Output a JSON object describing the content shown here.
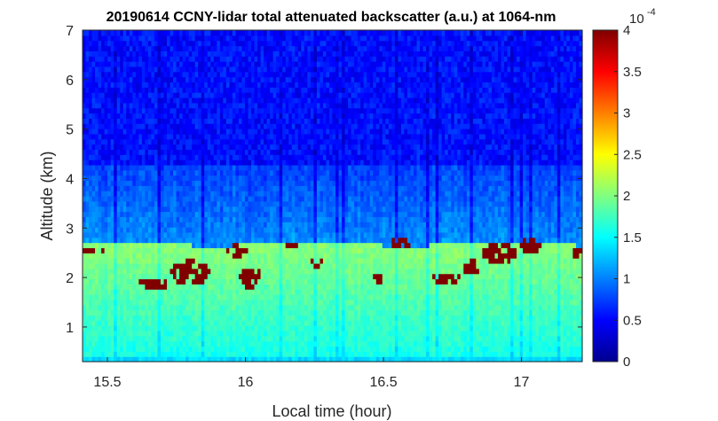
{
  "chart_data": {
    "type": "heatmap",
    "title": "20190614 CCNY-lidar total attenuated backscatter (a.u.) at 1064-nm",
    "xlabel": "Local time (hour)",
    "ylabel": "Altitude (km)",
    "xlim": [
      15.41,
      17.22
    ],
    "ylim": [
      0.3,
      7
    ],
    "xticks": [
      "15.5",
      "16",
      "16.5",
      "17"
    ],
    "xtick_values": [
      15.5,
      16,
      16.5,
      17
    ],
    "yticks": [
      "1",
      "2",
      "3",
      "4",
      "5",
      "6",
      "7"
    ],
    "ytick_values": [
      1,
      2,
      3,
      4,
      5,
      6,
      7
    ],
    "colorbar": {
      "colormap": "jet",
      "range": [
        0,
        0.0004
      ],
      "ticks": [
        "0",
        "0.5",
        "1",
        "1.5",
        "2",
        "2.5",
        "3",
        "3.5",
        "4"
      ],
      "tick_values": [
        0,
        0.5,
        1,
        1.5,
        2,
        2.5,
        3,
        3.5,
        4
      ],
      "exponent_base": "10",
      "exponent": "-4"
    },
    "boundary_layer_top_km": 2.7,
    "features": {
      "boundary_layer_backscatter": "approx 1.5-2.2 (x1e-4), below about 2.7 km",
      "free_troposphere_backscatter": "approx 0.3-1.0 (x1e-4), above about 2.8 km",
      "strong_returns": "saturated (>=4 x1e-4) patches near the boundary-layer top, 1.6-2.9 km"
    }
  }
}
